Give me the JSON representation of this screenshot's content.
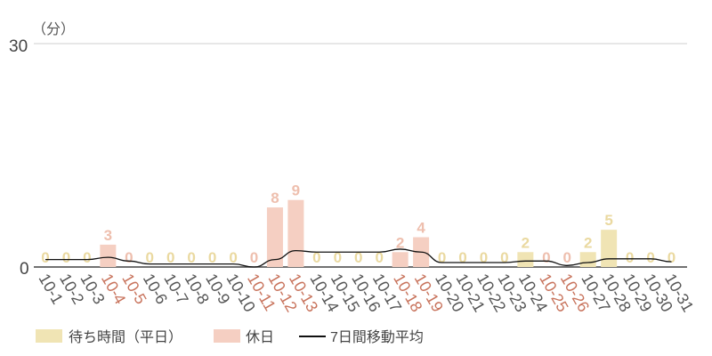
{
  "chart_data": {
    "type": "bar",
    "unit_label": "（分）",
    "ylim": [
      0,
      30
    ],
    "y_ticks": [
      "0",
      "30"
    ],
    "grid": "top-line-only",
    "categories": [
      "10-1",
      "10-2",
      "10-3",
      "10-4",
      "10-5",
      "10-6",
      "10-7",
      "10-8",
      "10-9",
      "10-10",
      "10-11",
      "10-12",
      "10-13",
      "10-14",
      "10-15",
      "10-16",
      "10-17",
      "10-18",
      "10-19",
      "10-20",
      "10-21",
      "10-22",
      "10-23",
      "10-24",
      "10-25",
      "10-26",
      "10-27",
      "10-28",
      "10-29",
      "10-30",
      "10-31"
    ],
    "holiday_flags": [
      false,
      false,
      false,
      true,
      true,
      false,
      false,
      false,
      false,
      false,
      true,
      true,
      true,
      false,
      false,
      false,
      false,
      true,
      true,
      false,
      false,
      false,
      false,
      false,
      true,
      true,
      false,
      false,
      false,
      false,
      false
    ],
    "series": [
      {
        "name": "待ち時間（平日）",
        "kind": "bar",
        "color": "#f0e4b4",
        "label_color": "#ead9a0"
      },
      {
        "name": "休日",
        "kind": "bar",
        "color": "#f5cfc2",
        "label_color": "#eebfae"
      },
      {
        "name": "7日間移動平均",
        "kind": "line",
        "color": "#111111"
      }
    ],
    "values": [
      0,
      0,
      0,
      3,
      0,
      0,
      0,
      0,
      0,
      0,
      0,
      8,
      9,
      0,
      0,
      0,
      0,
      2,
      4,
      0,
      0,
      0,
      0,
      2,
      0,
      0,
      2,
      5,
      0,
      0,
      0
    ],
    "moving_average": [
      1.0,
      1.0,
      1.0,
      1.3,
      0.8,
      0.4,
      0.4,
      0.4,
      0.4,
      0.4,
      0.0,
      1.0,
      2.2,
      2.0,
      2.0,
      2.0,
      2.0,
      2.4,
      2.0,
      0.6,
      0.6,
      0.6,
      0.6,
      0.8,
      0.8,
      0.2,
      0.6,
      1.1,
      1.1,
      1.1,
      0.7
    ],
    "legend_position": "bottom-left",
    "x_tick_color_normal": "#555555",
    "x_tick_color_holiday": "#c8735c",
    "axis_color": "#444444",
    "grid_color": "#cfcfcf"
  }
}
